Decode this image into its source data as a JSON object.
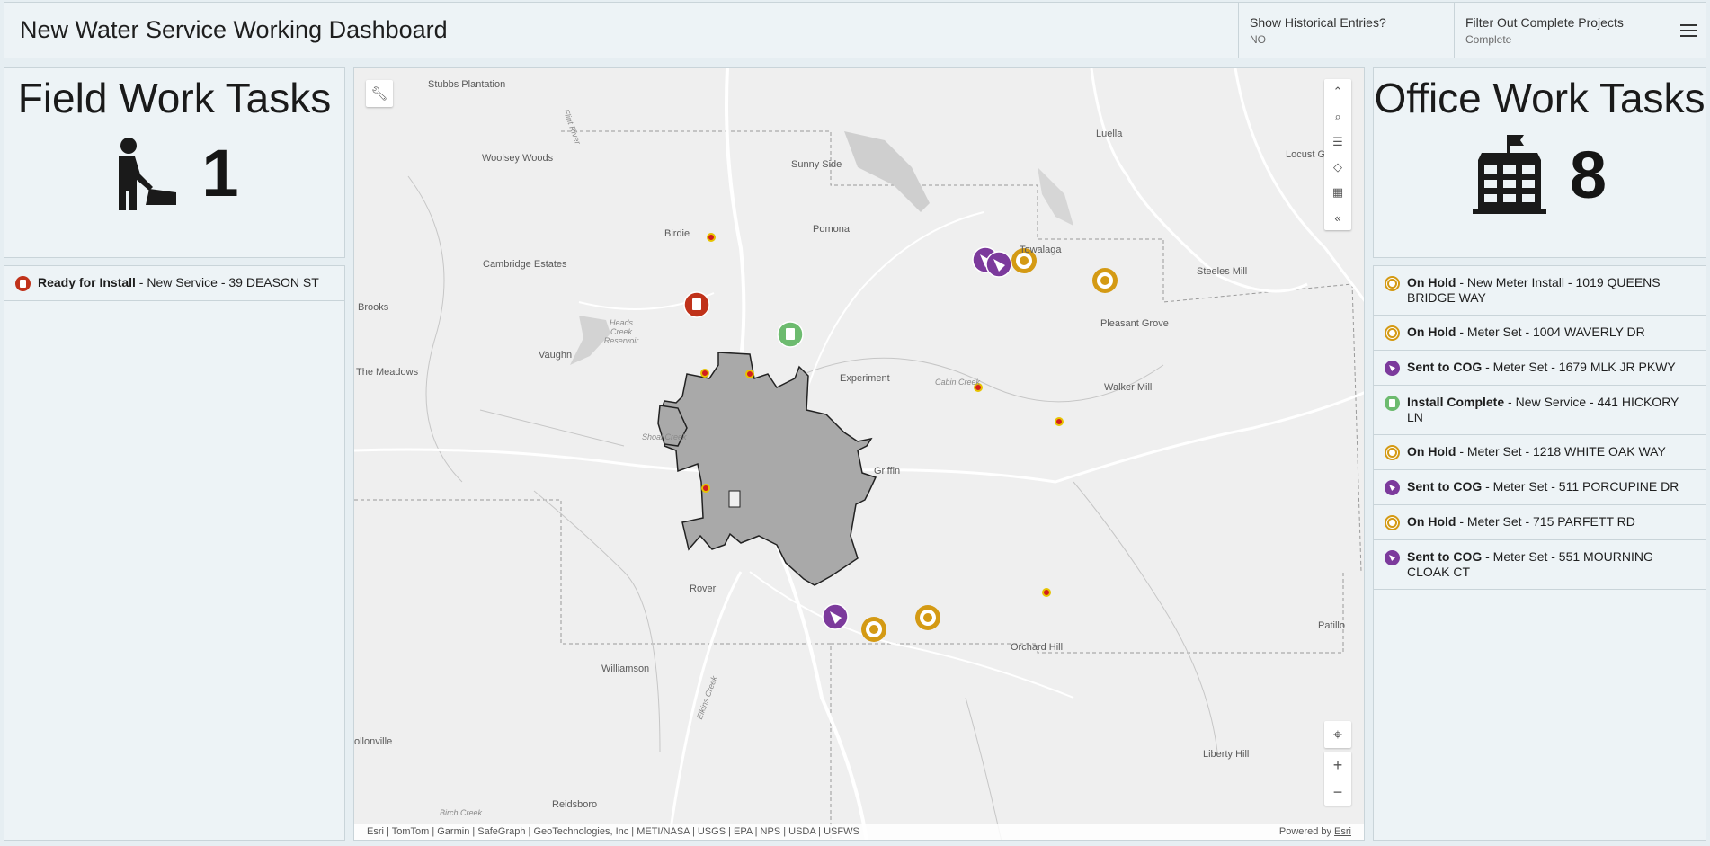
{
  "header": {
    "title": "New Water Service Working Dashboard",
    "selectors": [
      {
        "label": "Show Historical Entries?",
        "value": "NO"
      },
      {
        "label": "Filter Out Complete Projects",
        "value": "Complete"
      }
    ],
    "menu_icon": "hamburger-icon"
  },
  "field_tasks": {
    "title": "Field Work Tasks",
    "icon": "worker-digging-icon",
    "value": "1",
    "items": [
      {
        "status": "Ready for Install",
        "detail": " - New Service - 39 DEASON ST",
        "icon": "ready-install-icon"
      }
    ]
  },
  "office_tasks": {
    "title": "Office Work Tasks",
    "icon": "school-building-icon",
    "value": "8",
    "items": [
      {
        "status": "On Hold",
        "detail": " - New Meter Install - 1019 QUEENS BRIDGE WAY",
        "icon": "on-hold-icon"
      },
      {
        "status": "On Hold",
        "detail": " - Meter Set - 1004 WAVERLY DR",
        "icon": "on-hold-icon"
      },
      {
        "status": "Sent to COG",
        "detail": " - Meter Set - 1679 MLK JR PKWY",
        "icon": "sent-to-cog-icon"
      },
      {
        "status": "Install Complete",
        "detail": " - New Service - 441 HICKORY LN",
        "icon": "install-complete-icon"
      },
      {
        "status": "On Hold",
        "detail": " - Meter Set - 1218 WHITE OAK WAY",
        "icon": "on-hold-icon"
      },
      {
        "status": "Sent to COG",
        "detail": " - Meter Set - 511 PORCUPINE DR",
        "icon": "sent-to-cog-icon"
      },
      {
        "status": "On Hold",
        "detail": " - Meter Set - 715 PARFETT RD",
        "icon": "on-hold-icon"
      },
      {
        "status": "Sent to COG",
        "detail": " - Meter Set - 551 MOURNING CLOAK CT",
        "icon": "sent-to-cog-icon"
      }
    ]
  },
  "map": {
    "places": [
      "Stubbs Plantation",
      "Woolsey Woods",
      "Sunny Side",
      "Luella",
      "Locust Grove",
      "Birdie",
      "Pomona",
      "Cambridge Estates",
      "Towalaga",
      "Steeles Mill",
      "Brooks",
      "Pleasant Grove",
      "Vaughn",
      "The Meadows",
      "Experiment",
      "Walker Mill",
      "Griffin",
      "Rover",
      "Orchard Hill",
      "Patillo",
      "Williamson",
      "ollonville",
      "Liberty Hill",
      "Reidsboro"
    ],
    "water_labels": [
      "Heads Creek Reservoir",
      "Shoal Creek",
      "Cabin Creek",
      "Birch Creek",
      "Elkins Creek",
      "Flint River"
    ],
    "tools": [
      "collapse-up-icon",
      "search-icon",
      "legend-icon",
      "layers-icon",
      "qr-code-icon",
      "collapse-left-icon"
    ],
    "attribution": "Esri | TomTom | Garmin | SafeGraph | GeoTechnologies, Inc | METI/NASA | USGS | EPA | NPS | USDA | USFWS",
    "powered_by": "Powered by",
    "powered_by_link": "Esri",
    "colors": {
      "on_hold": "#d49a14",
      "sent_to_cog": "#7c3a9c",
      "install_complete": "#6dbb6f",
      "ready_for_install": "#c0321a",
      "city": "#a9a9a9"
    }
  }
}
